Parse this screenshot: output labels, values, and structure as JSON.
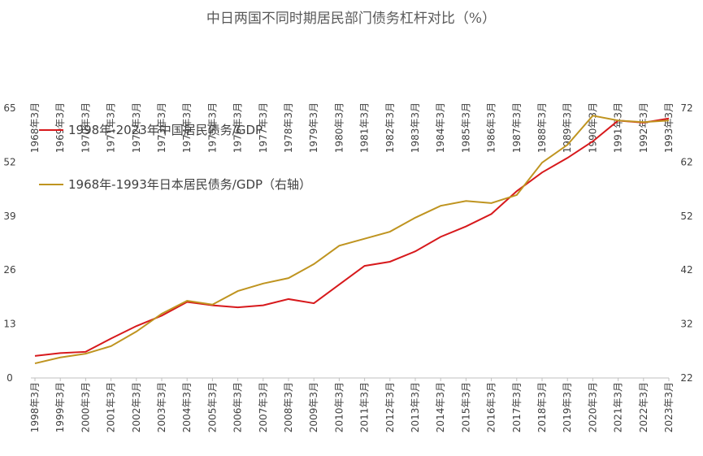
{
  "chart_data": {
    "type": "line",
    "title": "中日两国不同时期居民部门债务杠杆对比（%）",
    "categories": [
      "1998年3月",
      "1999年3月",
      "2000年3月",
      "2001年3月",
      "2002年3月",
      "2003年3月",
      "2004年3月",
      "2005年3月",
      "2006年3月",
      "2007年3月",
      "2008年3月",
      "2009年3月",
      "2010年3月",
      "2011年3月",
      "2012年3月",
      "2013年3月",
      "2014年3月",
      "2015年3月",
      "2016年3月",
      "2017年3月",
      "2018年3月",
      "2019年3月",
      "2020年3月",
      "2021年3月",
      "2022年3月",
      "2023年3月"
    ],
    "top_categories": [
      "1968年3月",
      "1969年3月",
      "1970年3月",
      "1971年3月",
      "1972年3月",
      "1973年3月",
      "1974年3月",
      "1975年3月",
      "1976年3月",
      "1977年3月",
      "1978年3月",
      "1979年3月",
      "1980年3月",
      "1981年3月",
      "1982年3月",
      "1983年3月",
      "1984年3月",
      "1985年3月",
      "1986年3月",
      "1987年3月",
      "1988年3月",
      "1989年3月",
      "1990年3月",
      "1991年3月",
      "1992年3月",
      "1993年3月"
    ],
    "series": [
      {
        "name": "1998年-2023年中国居民债务/GDP",
        "color": "#d7191c",
        "values": [
          5.3,
          6.0,
          6.3,
          9.5,
          12.5,
          15.0,
          18.3,
          17.5,
          17.0,
          17.5,
          19.0,
          18.0,
          22.5,
          27.0,
          28.0,
          30.5,
          34.0,
          36.5,
          39.5,
          45.0,
          49.5,
          53.0,
          57.0,
          62.0,
          61.5,
          62.5
        ]
      },
      {
        "name": "1968年-1993年日本居民债务/GDP（右轴）",
        "color": "#bf9420",
        "axis": "y2",
        "values": [
          24.7,
          25.8,
          26.5,
          27.9,
          30.6,
          33.9,
          36.3,
          35.6,
          38.1,
          39.5,
          40.5,
          43.1,
          46.5,
          47.8,
          49.1,
          51.7,
          53.9,
          54.8,
          54.4,
          55.9,
          61.9,
          65.2,
          70.6,
          69.7,
          69.4,
          69.7
        ]
      }
    ],
    "ylim": [
      0,
      65
    ],
    "yticks": [
      0,
      13,
      26,
      39,
      52,
      65
    ],
    "y2lim": [
      22,
      72
    ],
    "y2ticks": [
      22,
      32,
      42,
      52,
      62,
      72
    ],
    "legend": "upper left"
  }
}
